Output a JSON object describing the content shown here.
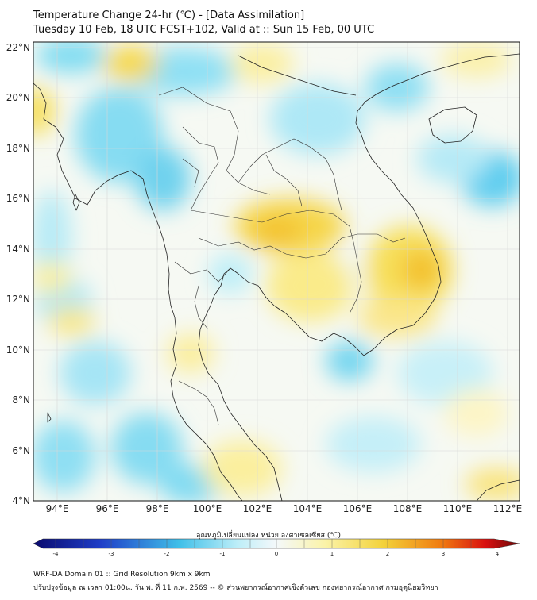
{
  "title": {
    "line1": "Temperature Change 24-hr (℃) - [Data Assimilation]",
    "line2": "Tuesday 10 Feb, 18 UTC FCST+102, Valid at :: Sun 15 Feb, 00 UTC"
  },
  "map": {
    "lon_range": [
      93,
      112.5
    ],
    "lat_range": [
      4,
      22.3
    ],
    "lon_ticks": [
      "94°E",
      "96°E",
      "98°E",
      "100°E",
      "102°E",
      "104°E",
      "106°E",
      "108°E",
      "110°E",
      "112°E"
    ],
    "lat_ticks": [
      "4°N",
      "6°N",
      "8°N",
      "10°N",
      "12°N",
      "14°N",
      "16°N",
      "18°N",
      "20°N",
      "22°N"
    ],
    "grid": true,
    "field": "24-hr temperature change"
  },
  "colorbar": {
    "title": "อุณหภูมิเปลี่ยนแปลง หน่วย องศาเซลเซียส (℃)",
    "ticks": [
      "-4",
      "-3",
      "-2",
      "-1",
      "0",
      "1",
      "2",
      "3",
      "4"
    ],
    "range": [
      -4,
      4
    ]
  },
  "footer": {
    "line1": "WRF-DA Domain 01 :: Grid Resolution 9km x 9km",
    "line2": "ปรับปรุงข้อมูล ณ เวลา 01:00น. วัน พ. ที่ 11 ก.พ. 2569 -- © ส่วนพยากรณ์อากาศเชิงตัวเลข กองพยากรณ์อากาศ กรมอุตุนิยมวิทยา"
  },
  "colors": {
    "cold_extreme": "#0a0a6e",
    "cold": "#1f5fd6",
    "cool": "#5ed2f0",
    "neutral": "#f4f8fa",
    "warm": "#f7ea7a",
    "hot": "#f28a10",
    "hot_extreme": "#7a0a0a"
  }
}
